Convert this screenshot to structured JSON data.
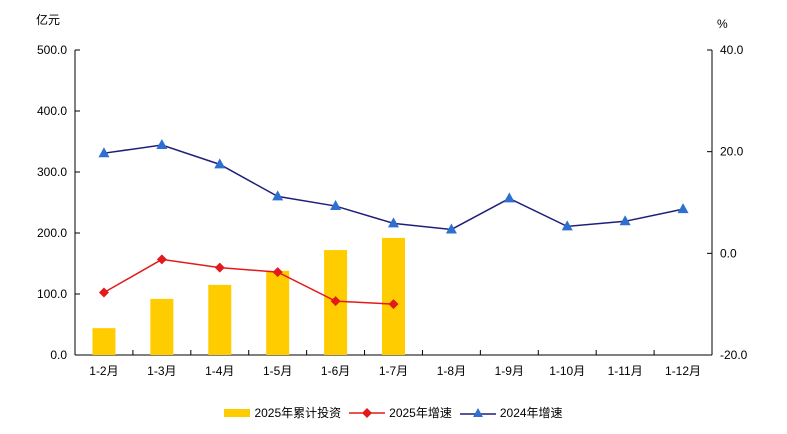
{
  "chart_data": {
    "type": "bar+line",
    "categories": [
      "1-2月",
      "1-3月",
      "1-4月",
      "1-5月",
      "1-6月",
      "1-7月",
      "1-8月",
      "1-9月",
      "1-10月",
      "1-11月",
      "1-12月"
    ],
    "left_axis": {
      "unit_label": "亿元",
      "ylim": [
        0,
        500
      ],
      "ticks": [
        "0.0",
        "100.0",
        "200.0",
        "300.0",
        "400.0",
        "500.0"
      ]
    },
    "right_axis": {
      "unit_label": "%",
      "ylim": [
        -20,
        40
      ],
      "ticks": [
        "-20.0",
        "0.0",
        "20.0",
        "40.0"
      ]
    },
    "series": [
      {
        "name": "2025年累计投资",
        "type": "bar",
        "axis": "left",
        "color": "#FFCC00",
        "values": [
          44,
          92,
          115,
          138,
          172,
          192,
          null,
          null,
          null,
          null,
          null
        ]
      },
      {
        "name": "2025年增速",
        "type": "line",
        "axis": "right",
        "color": "#E31A1C",
        "marker": "diamond",
        "values": [
          -7.7,
          -1.2,
          -2.8,
          -3.7,
          -9.4,
          -10.0,
          null,
          null,
          null,
          null,
          null
        ]
      },
      {
        "name": "2024年增速",
        "type": "line",
        "axis": "right",
        "color": "#1F1F7A",
        "marker_color": "#2F6FD0",
        "marker": "triangle",
        "values": [
          19.7,
          21.3,
          17.5,
          11.2,
          9.3,
          5.9,
          4.7,
          10.8,
          5.3,
          6.3,
          8.7
        ]
      }
    ],
    "title": "",
    "xlabel": "",
    "ylabel": "亿元",
    "y2label": "%",
    "grid": false,
    "legend_position": "bottom"
  },
  "legend": {
    "items": [
      "2025年累计投资",
      "2025年增速",
      "2024年增速"
    ]
  }
}
